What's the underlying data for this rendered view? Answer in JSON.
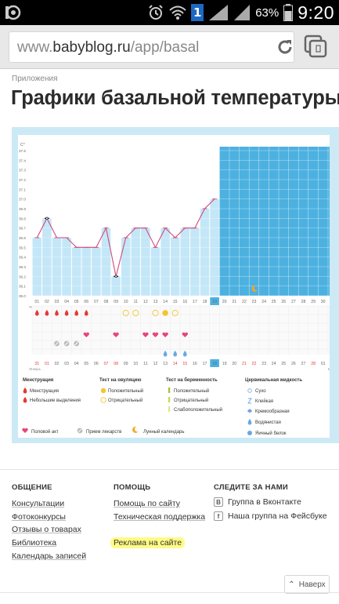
{
  "statusbar": {
    "battery": "63%",
    "time": "9:20",
    "sim_badge": "1"
  },
  "browser": {
    "url_prefix": "www.",
    "url_domain": "babyblog.ru",
    "url_path": "/app/basal"
  },
  "breadcrumb": "Приложения",
  "title": "Графики базальной температуры",
  "chart_data": {
    "type": "line",
    "y_unit": "С°",
    "ylim": [
      36.0,
      37.5
    ],
    "y_ticks": [
      "37.5",
      "37.4",
      "37.3",
      "37.2",
      "37.1",
      "37.0",
      "36.9",
      "36.8",
      "36.7",
      "36.6",
      "36.5",
      "36.4",
      "36.3",
      "36.2",
      "36.1",
      "36.0"
    ],
    "x_days": [
      "01",
      "02",
      "03",
      "04",
      "05",
      "06",
      "07",
      "08",
      "09",
      "10",
      "11",
      "12",
      "13",
      "14",
      "15",
      "16",
      "17",
      "18",
      "19",
      "20",
      "21",
      "22",
      "23",
      "24",
      "25",
      "26",
      "27",
      "28",
      "29",
      "30",
      "31"
    ],
    "current_day": "19",
    "x": [
      "01",
      "02",
      "03",
      "04",
      "05",
      "06",
      "07",
      "08",
      "09",
      "10",
      "11",
      "12",
      "13",
      "14",
      "15",
      "16",
      "17",
      "18",
      "19"
    ],
    "values": [
      36.6,
      36.8,
      36.6,
      36.6,
      36.5,
      36.5,
      36.5,
      36.7,
      36.2,
      36.6,
      36.7,
      36.7,
      36.5,
      36.7,
      36.6,
      36.7,
      36.7,
      36.9,
      37.0
    ],
    "marked_days": [
      "02",
      "09"
    ],
    "month_labels": {
      "start": "Январь",
      "middle": "Февраль",
      "end": "Март"
    },
    "bottom_days": [
      "31",
      "01",
      "02",
      "03",
      "04",
      "05",
      "06",
      "07",
      "08",
      "09",
      "10",
      "11",
      "12",
      "13",
      "14",
      "15",
      "16",
      "17",
      "18",
      "19",
      "20",
      "21",
      "22",
      "23",
      "24",
      "25",
      "26",
      "27",
      "28",
      "01",
      "02"
    ],
    "bottom_red_days": [
      "31",
      "01",
      "07",
      "08",
      "14",
      "15",
      "21",
      "22",
      "28"
    ],
    "menstruation_days": [
      "01",
      "02",
      "03",
      "04",
      "05",
      "06"
    ],
    "ovulation_negative_days": [
      "10",
      "11",
      "13",
      "15"
    ],
    "ovulation_positive_days": [
      "14"
    ],
    "intercourse_days": [
      "06",
      "09",
      "12",
      "13",
      "14",
      "16"
    ],
    "medicine_days": [
      "03",
      "04",
      "05"
    ],
    "moon_days": [
      "23"
    ],
    "fluid_watery_days": [
      "14",
      "15",
      "16"
    ]
  },
  "legend": {
    "col1_head": "Менструация",
    "col1_items": [
      "Менструация",
      "Небольшие выделения"
    ],
    "col2_head": "Тест на овуляцию",
    "col2_items": [
      "Положительный",
      "Отрицательный"
    ],
    "col3_head": "Тест на беременность",
    "col3_items": [
      "Положительный",
      "Отрицательный",
      "Слабоположительный"
    ],
    "col4_head": "Цервикальная жидкость",
    "col4_items": [
      "Сухо",
      "Клейкая",
      "Кремообразная",
      "Водянистая",
      "Яичный белок"
    ],
    "bottom_items": [
      "Половой акт",
      "Прием лекарств",
      "Лунный календарь"
    ]
  },
  "footer": {
    "col1_head": "ОБЩЕНИЕ",
    "col1_links": [
      "Консультации",
      "Фотоконкурсы",
      "Отзывы о товарах",
      "Библиотека",
      "Календарь записей"
    ],
    "col2_head": "ПОМОЩЬ",
    "col2_links": [
      "Помощь по сайту",
      "Техническая поддержка",
      "Реклама на сайте"
    ],
    "col3_head": "СЛЕДИТЕ ЗА НАМИ",
    "col3_links": [
      "Группа в Вконтакте",
      "Наша группа на Фейсбуке"
    ],
    "up_label": "Наверх"
  },
  "colors": {
    "accent_blue": "#4db1e0",
    "chart_fill": "#c4e7f8",
    "line": "#d0487a",
    "pink": "#e8457d",
    "red": "#e53935",
    "yellow": "#f4c530"
  }
}
